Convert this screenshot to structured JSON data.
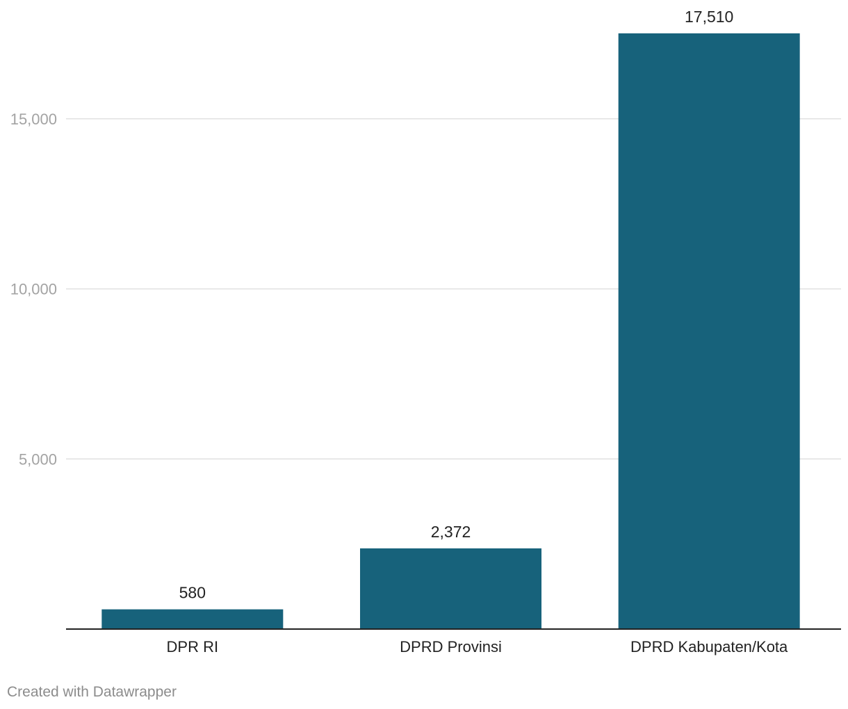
{
  "chart_data": {
    "type": "bar",
    "categories": [
      "DPR RI",
      "DPRD Provinsi",
      "DPRD Kabupaten/Kota"
    ],
    "values": [
      580,
      2372,
      17510
    ],
    "value_labels": [
      "580",
      "2,372",
      "17,510"
    ],
    "title": "",
    "xlabel": "",
    "ylabel": "",
    "ylim": [
      0,
      17510
    ],
    "yticks": [
      5000,
      10000,
      15000
    ],
    "ytick_labels": [
      "5,000",
      "10,000",
      "15,000"
    ],
    "grid": true,
    "bar_color": "#17627b"
  },
  "footer": {
    "credit": "Created with Datawrapper"
  }
}
